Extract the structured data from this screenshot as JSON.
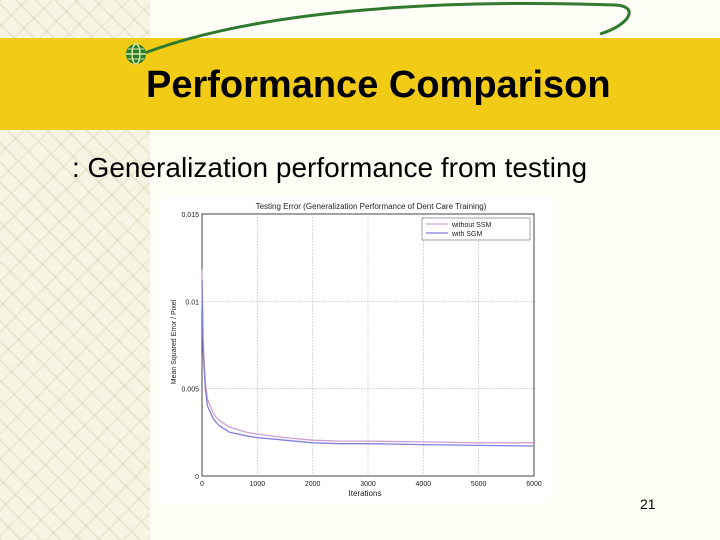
{
  "slide": {
    "title": "Performance Comparison",
    "subtitle": ": Generalization performance from testing",
    "page_number": "21"
  },
  "colors": {
    "title_band": "#f2cb16",
    "series_without_ssm": "#d0a0d0",
    "series_with_sgm": "#8080e0"
  },
  "chart_data": {
    "type": "line",
    "title": "Testing Error (Generalization Performance of Dent Care Training)",
    "xlabel": "Iterations",
    "ylabel": "Mean Squared Error / Pixel",
    "xlim": [
      0,
      6000
    ],
    "ylim": [
      0,
      0.015
    ],
    "xticks": [
      "0",
      "1000",
      "2000",
      "3000",
      "4000",
      "5000",
      "6000"
    ],
    "yticks": [
      "0",
      "0.005",
      "0.01",
      "0.015"
    ],
    "ytick_values": [
      0,
      0.005,
      0.01,
      0.015
    ],
    "grid": true,
    "legend_position": "top-right",
    "series": [
      {
        "name": "without SSM",
        "color": "#d0a0d0",
        "x": [
          0,
          20,
          60,
          100,
          200,
          300,
          500,
          800,
          1000,
          1500,
          2000,
          2500,
          3000,
          4000,
          5000,
          6000
        ],
        "y": [
          0.0118,
          0.0078,
          0.0054,
          0.0044,
          0.0036,
          0.0032,
          0.0028,
          0.0025,
          0.0024,
          0.0022,
          0.00205,
          0.002,
          0.002,
          0.00195,
          0.0019,
          0.0019
        ]
      },
      {
        "name": "with SGM",
        "color": "#8080e0",
        "x": [
          0,
          20,
          60,
          100,
          200,
          300,
          500,
          800,
          1000,
          1500,
          2000,
          2500,
          3000,
          4000,
          5000,
          6000
        ],
        "y": [
          0.0112,
          0.0072,
          0.005,
          0.004,
          0.0033,
          0.0029,
          0.0025,
          0.0023,
          0.0022,
          0.00205,
          0.0019,
          0.00185,
          0.00185,
          0.0018,
          0.00175,
          0.00172
        ]
      }
    ]
  }
}
